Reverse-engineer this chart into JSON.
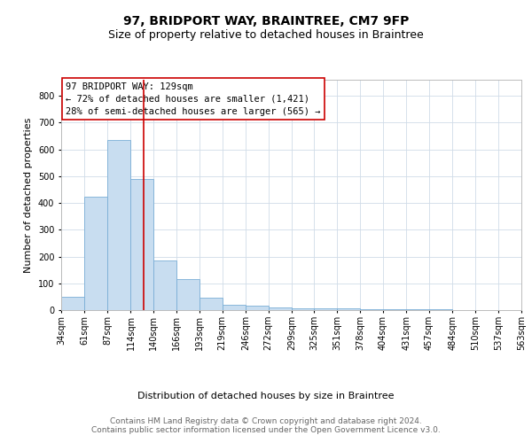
{
  "title": "97, BRIDPORT WAY, BRAINTREE, CM7 9FP",
  "subtitle": "Size of property relative to detached houses in Braintree",
  "xlabel": "Distribution of detached houses by size in Braintree",
  "ylabel": "Number of detached properties",
  "bin_edges": [
    34,
    61,
    87,
    114,
    140,
    166,
    193,
    219,
    246,
    272,
    299,
    325,
    351,
    378,
    404,
    431,
    457,
    484,
    510,
    537,
    563
  ],
  "bar_heights": [
    50,
    425,
    635,
    490,
    185,
    115,
    45,
    20,
    15,
    10,
    8,
    6,
    5,
    4,
    3,
    2,
    2,
    1,
    1,
    1
  ],
  "bar_color": "#c8ddf0",
  "bar_edgecolor": "#7aaed6",
  "property_size": 129,
  "red_line_color": "#cc0000",
  "annotation_text": "97 BRIDPORT WAY: 129sqm\n← 72% of detached houses are smaller (1,421)\n28% of semi-detached houses are larger (565) →",
  "annotation_box_color": "#ffffff",
  "annotation_box_edgecolor": "#cc0000",
  "ylim": [
    0,
    860
  ],
  "yticks": [
    0,
    100,
    200,
    300,
    400,
    500,
    600,
    700,
    800
  ],
  "footer_text": "Contains HM Land Registry data © Crown copyright and database right 2024.\nContains public sector information licensed under the Open Government Licence v3.0.",
  "title_fontsize": 10,
  "subtitle_fontsize": 9,
  "axis_label_fontsize": 8,
  "tick_fontsize": 7,
  "annotation_fontsize": 7.5,
  "footer_fontsize": 6.5,
  "background_color": "#ffffff",
  "grid_color": "#d0dce8"
}
